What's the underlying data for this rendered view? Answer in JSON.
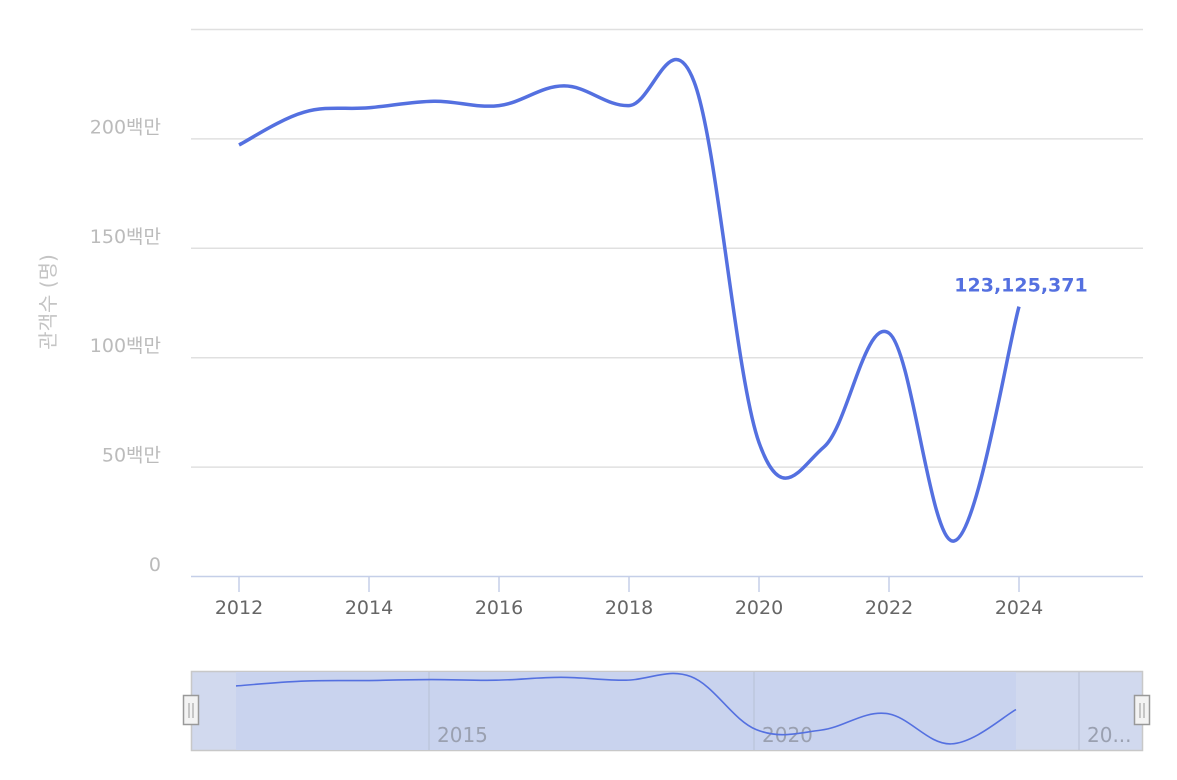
{
  "chart_data": {
    "type": "line",
    "ylabel": "관객수 (명)",
    "xlabel": "",
    "x": [
      2012,
      2013,
      2014,
      2015,
      2016,
      2017,
      2018,
      2019,
      2020,
      2021,
      2022,
      2023,
      2024
    ],
    "values": [
      197000000,
      212000000,
      214000000,
      217000000,
      215000000,
      224000000,
      215000000,
      226000000,
      61000000,
      59000000,
      111000000,
      16000000,
      123125371
    ],
    "xlim": [
      2011.2,
      2025.8
    ],
    "ylim": [
      0,
      250000000
    ],
    "x_ticks": [
      "2012",
      "2014",
      "2016",
      "2018",
      "2020",
      "2022",
      "2024"
    ],
    "y_ticks": [
      {
        "value": 0,
        "label": "0"
      },
      {
        "value": 50000000,
        "label": "50백만"
      },
      {
        "value": 100000000,
        "label": "100백만"
      },
      {
        "value": 150000000,
        "label": "150백만"
      },
      {
        "value": 200000000,
        "label": "200백만"
      },
      {
        "value": 250000000,
        "label": ""
      }
    ],
    "data_label": "123,125,371",
    "grid": true,
    "line_color": "#5470e0",
    "smooth": true
  },
  "data_zoom": {
    "ticks": [
      "2015",
      "2020",
      "20..."
    ],
    "range_percent": [
      0,
      100
    ],
    "fill_color": "#d1d9ee"
  }
}
